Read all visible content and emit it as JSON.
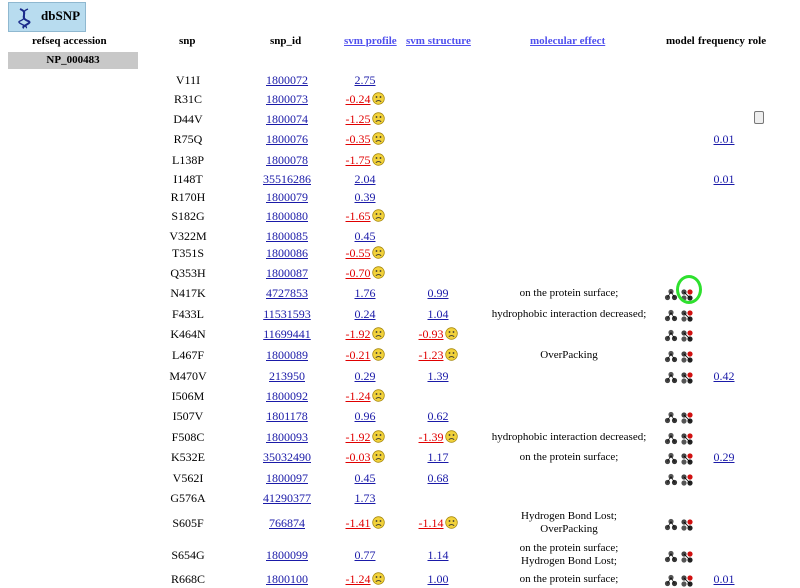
{
  "logo": {
    "label": "dbSNP"
  },
  "headers": {
    "refseq": "refseq accession",
    "snp": "snp",
    "snp_id": "snp_id",
    "svm_profile": "svm profile",
    "svm_structure": "svm structure",
    "molecular_effect": "molecular effect",
    "model": "model",
    "frequency": "frequency",
    "role": "role"
  },
  "accession": "NP_000483",
  "colors": {
    "link": "#1a1aa8",
    "negative": "#e00000",
    "header_link": "#5050ee",
    "highlight": "#2ee02e"
  },
  "rows": [
    {
      "snp": "V11I",
      "snp_id": "1800072",
      "prof": "2.75",
      "str": "",
      "eff": "",
      "model": false,
      "freq": ""
    },
    {
      "snp": "R31C",
      "snp_id": "1800073",
      "prof": "-0.24",
      "str": "",
      "eff": "",
      "model": false,
      "freq": ""
    },
    {
      "snp": "D44V",
      "snp_id": "1800074",
      "prof": "-1.25",
      "str": "",
      "eff": "",
      "model": false,
      "freq": ""
    },
    {
      "snp": "R75Q",
      "snp_id": "1800076",
      "prof": "-0.35",
      "str": "",
      "eff": "",
      "model": false,
      "freq": "0.01"
    },
    {
      "snp": "L138P",
      "snp_id": "1800078",
      "prof": "-1.75",
      "str": "",
      "eff": "",
      "model": false,
      "freq": ""
    },
    {
      "snp": "I148T",
      "snp_id": "35516286",
      "prof": "2.04",
      "str": "",
      "eff": "",
      "model": false,
      "freq": "0.01"
    },
    {
      "snp": "R170H",
      "snp_id": "1800079",
      "prof": "0.39",
      "str": "",
      "eff": "",
      "model": false,
      "freq": ""
    },
    {
      "snp": "S182G",
      "snp_id": "1800080",
      "prof": "-1.65",
      "str": "",
      "eff": "",
      "model": false,
      "freq": ""
    },
    {
      "snp": "V322M",
      "snp_id": "1800085",
      "prof": "0.45",
      "str": "",
      "eff": "",
      "model": false,
      "freq": ""
    },
    {
      "snp": "T351S",
      "snp_id": "1800086",
      "prof": "-0.55",
      "str": "",
      "eff": "",
      "model": false,
      "freq": ""
    },
    {
      "snp": "Q353H",
      "snp_id": "1800087",
      "prof": "-0.70",
      "str": "",
      "eff": "",
      "model": false,
      "freq": ""
    },
    {
      "snp": "N417K",
      "snp_id": "4727853",
      "prof": "1.76",
      "str": "0.99",
      "eff": "on the protein surface;",
      "model": true,
      "freq": ""
    },
    {
      "snp": "F433L",
      "snp_id": "11531593",
      "prof": "0.24",
      "str": "1.04",
      "eff": "hydrophobic interaction decreased;",
      "model": true,
      "freq": ""
    },
    {
      "snp": "K464N",
      "snp_id": "11699441",
      "prof": "-1.92",
      "str": "-0.93",
      "eff": "",
      "model": true,
      "freq": ""
    },
    {
      "snp": "L467F",
      "snp_id": "1800089",
      "prof": "-0.21",
      "str": "-1.23",
      "eff": "OverPacking",
      "model": true,
      "freq": ""
    },
    {
      "snp": "M470V",
      "snp_id": "213950",
      "prof": "0.29",
      "str": "1.39",
      "eff": "",
      "model": true,
      "freq": "0.42"
    },
    {
      "snp": "I506M",
      "snp_id": "1800092",
      "prof": "-1.24",
      "str": "",
      "eff": "",
      "model": false,
      "freq": ""
    },
    {
      "snp": "I507V",
      "snp_id": "1801178",
      "prof": "0.96",
      "str": "0.62",
      "eff": "",
      "model": true,
      "freq": ""
    },
    {
      "snp": "F508C",
      "snp_id": "1800093",
      "prof": "-1.92",
      "str": "-1.39",
      "eff": "hydrophobic interaction decreased;",
      "model": true,
      "freq": ""
    },
    {
      "snp": "K532E",
      "snp_id": "35032490",
      "prof": "-0.03",
      "str": "1.17",
      "eff": "on the protein surface;",
      "model": true,
      "freq": "0.29"
    },
    {
      "snp": "V562I",
      "snp_id": "1800097",
      "prof": "0.45",
      "str": "0.68",
      "eff": "",
      "model": true,
      "freq": ""
    },
    {
      "snp": "G576A",
      "snp_id": "41290377",
      "prof": "1.73",
      "str": "",
      "eff": "",
      "model": false,
      "freq": ""
    },
    {
      "snp": "S605F",
      "snp_id": "766874",
      "prof": "-1.41",
      "str": "-1.14",
      "eff": "Hydrogen Bond Lost;",
      "eff2": "OverPacking",
      "model": true,
      "freq": ""
    },
    {
      "snp": "S654G",
      "snp_id": "1800099",
      "prof": "0.77",
      "str": "1.14",
      "eff": "on the protein surface;",
      "eff2": "Hydrogen Bond Lost;",
      "model": true,
      "freq": ""
    },
    {
      "snp": "R668C",
      "snp_id": "1800100",
      "prof": "-1.24",
      "str": "1.00",
      "eff": "on the protein surface;",
      "model": true,
      "freq": "0.01"
    }
  ]
}
